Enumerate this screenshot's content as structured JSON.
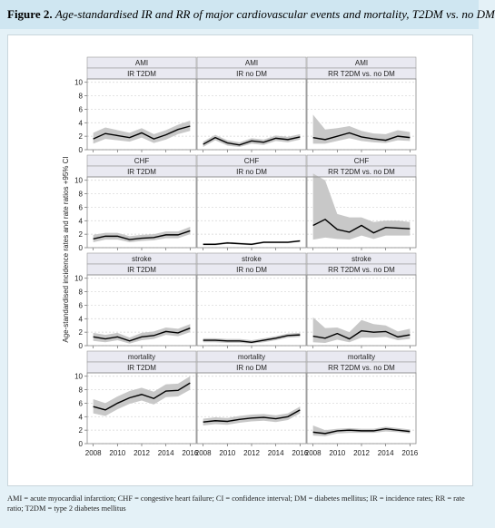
{
  "caption": {
    "label": "Figure 2.",
    "text": "Age-standardised IR and RR of major cardiovascular events and mortality, T2DM vs. no DM"
  },
  "ylabel": "Age-standardised incidence rates and rate ratios +95% CI",
  "footnote": "AMI = acute myocardial infarction; CHF = congestive heart failure; CI = confidence interval; DM = diabetes mellitus; IR = incidence rates; RR = rate ratio; T2DM = type 2 diabetes mellitus",
  "chart_data": [
    {
      "type": "line",
      "title": "AMI",
      "subtitle": "IR T2DM",
      "x": [
        2008,
        2009,
        2010,
        2011,
        2012,
        2013,
        2014,
        2015,
        2016
      ],
      "values": [
        1.6,
        2.4,
        2.1,
        1.8,
        2.5,
        1.6,
        2.2,
        3.0,
        3.5
      ],
      "lower": [
        0.9,
        1.6,
        1.4,
        1.2,
        1.8,
        1.0,
        1.5,
        2.3,
        2.8
      ],
      "upper": [
        2.5,
        3.3,
        2.9,
        2.5,
        3.2,
        2.3,
        2.9,
        3.7,
        4.3
      ],
      "color": "#000000",
      "band_color": "#c8c8c8",
      "xlim": [
        2007.5,
        2016.5
      ],
      "ylim": [
        0,
        10.5
      ],
      "xticks": [
        2008,
        2010,
        2012,
        2014,
        2016
      ],
      "yticks": [
        0,
        2,
        4,
        6,
        8,
        10
      ],
      "grid": true
    },
    {
      "type": "line",
      "title": "AMI",
      "subtitle": "IR no DM",
      "x": [
        2008,
        2009,
        2010,
        2011,
        2012,
        2013,
        2014,
        2015,
        2016
      ],
      "values": [
        0.8,
        1.8,
        1.0,
        0.7,
        1.3,
        1.1,
        1.7,
        1.5,
        1.9
      ],
      "lower": [
        0.4,
        1.4,
        0.6,
        0.4,
        0.9,
        0.7,
        1.3,
        1.1,
        1.5
      ],
      "upper": [
        1.2,
        2.2,
        1.4,
        1.1,
        1.7,
        1.5,
        2.1,
        1.9,
        2.3
      ],
      "color": "#000000",
      "band_color": "#c8c8c8",
      "xlim": [
        2007.5,
        2016.5
      ],
      "ylim": [
        0,
        10.5
      ],
      "xticks": [
        2008,
        2010,
        2012,
        2014,
        2016
      ],
      "yticks": [
        0,
        2,
        4,
        6,
        8,
        10
      ],
      "grid": true
    },
    {
      "type": "line",
      "title": "AMI",
      "subtitle": "RR T2DM vs. no DM",
      "x": [
        2008,
        2009,
        2010,
        2011,
        2012,
        2013,
        2014,
        2015,
        2016
      ],
      "values": [
        1.8,
        1.5,
        2.0,
        2.5,
        1.9,
        1.6,
        1.4,
        2.0,
        1.8
      ],
      "lower": [
        0.9,
        0.9,
        1.3,
        1.7,
        1.3,
        1.1,
        1.0,
        1.4,
        1.3
      ],
      "upper": [
        5.2,
        3.0,
        3.2,
        3.5,
        2.8,
        2.4,
        2.3,
        2.9,
        2.6
      ],
      "color": "#000000",
      "band_color": "#c8c8c8",
      "xlim": [
        2007.5,
        2016.5
      ],
      "ylim": [
        0,
        10.5
      ],
      "xticks": [
        2008,
        2010,
        2012,
        2014,
        2016
      ],
      "yticks": [
        0,
        2,
        4,
        6,
        8,
        10
      ],
      "grid": true
    },
    {
      "type": "line",
      "title": "CHF",
      "subtitle": "IR T2DM",
      "x": [
        2008,
        2009,
        2010,
        2011,
        2012,
        2013,
        2014,
        2015,
        2016
      ],
      "values": [
        1.3,
        1.7,
        1.7,
        1.2,
        1.4,
        1.5,
        1.9,
        1.9,
        2.5
      ],
      "lower": [
        0.8,
        1.2,
        1.2,
        0.8,
        1.0,
        1.1,
        1.4,
        1.4,
        2.0
      ],
      "upper": [
        1.9,
        2.2,
        2.2,
        1.7,
        1.9,
        2.0,
        2.4,
        2.4,
        3.1
      ],
      "color": "#000000",
      "band_color": "#c8c8c8",
      "xlim": [
        2007.5,
        2016.5
      ],
      "ylim": [
        0,
        10.5
      ],
      "xticks": [
        2008,
        2010,
        2012,
        2014,
        2016
      ],
      "yticks": [
        0,
        2,
        4,
        6,
        8,
        10
      ],
      "grid": true
    },
    {
      "type": "line",
      "title": "CHF",
      "subtitle": "IR no DM",
      "x": [
        2008,
        2009,
        2010,
        2011,
        2012,
        2013,
        2014,
        2015,
        2016
      ],
      "values": [
        0.5,
        0.5,
        0.7,
        0.6,
        0.5,
        0.8,
        0.8,
        0.8,
        1.0
      ],
      "lower": [
        0.35,
        0.35,
        0.55,
        0.45,
        0.35,
        0.65,
        0.65,
        0.65,
        0.85
      ],
      "upper": [
        0.65,
        0.65,
        0.85,
        0.75,
        0.65,
        0.95,
        0.95,
        0.95,
        1.15
      ],
      "color": "#000000",
      "band_color": "#c8c8c8",
      "xlim": [
        2007.5,
        2016.5
      ],
      "ylim": [
        0,
        10.5
      ],
      "xticks": [
        2008,
        2010,
        2012,
        2014,
        2016
      ],
      "yticks": [
        0,
        2,
        4,
        6,
        8,
        10
      ],
      "grid": true
    },
    {
      "type": "line",
      "title": "CHF",
      "subtitle": "RR T2DM vs. no DM",
      "x": [
        2008,
        2009,
        2010,
        2011,
        2012,
        2013,
        2014,
        2015,
        2016
      ],
      "values": [
        3.3,
        4.2,
        2.7,
        2.3,
        3.3,
        2.2,
        3.0,
        2.9,
        2.8
      ],
      "lower": [
        1.2,
        1.5,
        1.3,
        1.2,
        1.8,
        1.3,
        1.8,
        1.8,
        1.8
      ],
      "upper": [
        11,
        10,
        5,
        4.5,
        4.5,
        3.8,
        4,
        4,
        3.8
      ],
      "color": "#000000",
      "band_color": "#c8c8c8",
      "xlim": [
        2007.5,
        2016.5
      ],
      "ylim": [
        0,
        10.5
      ],
      "xticks": [
        2008,
        2010,
        2012,
        2014,
        2016
      ],
      "yticks": [
        0,
        2,
        4,
        6,
        8,
        10
      ],
      "grid": true
    },
    {
      "type": "line",
      "title": "stroke",
      "subtitle": "IR T2DM",
      "x": [
        2008,
        2009,
        2010,
        2011,
        2012,
        2013,
        2014,
        2015,
        2016
      ],
      "values": [
        1.3,
        1.0,
        1.3,
        0.7,
        1.3,
        1.5,
        2.1,
        1.9,
        2.6
      ],
      "lower": [
        0.7,
        0.5,
        0.8,
        0.3,
        0.8,
        1.0,
        1.6,
        1.4,
        2.0
      ],
      "upper": [
        1.9,
        1.6,
        1.9,
        1.2,
        1.9,
        2.1,
        2.7,
        2.5,
        3.2
      ],
      "color": "#000000",
      "band_color": "#c8c8c8",
      "xlim": [
        2007.5,
        2016.5
      ],
      "ylim": [
        0,
        10.5
      ],
      "xticks": [
        2008,
        2010,
        2012,
        2014,
        2016
      ],
      "yticks": [
        0,
        2,
        4,
        6,
        8,
        10
      ],
      "grid": true
    },
    {
      "type": "line",
      "title": "stroke",
      "subtitle": "IR no DM",
      "x": [
        2008,
        2009,
        2010,
        2011,
        2012,
        2013,
        2014,
        2015,
        2016
      ],
      "values": [
        0.8,
        0.8,
        0.7,
        0.7,
        0.5,
        0.8,
        1.1,
        1.5,
        1.6
      ],
      "lower": [
        0.5,
        0.5,
        0.4,
        0.4,
        0.3,
        0.5,
        0.8,
        1.2,
        1.3
      ],
      "upper": [
        1.1,
        1.1,
        1.0,
        1.0,
        0.8,
        1.1,
        1.4,
        1.8,
        1.9
      ],
      "color": "#000000",
      "band_color": "#c8c8c8",
      "xlim": [
        2007.5,
        2016.5
      ],
      "ylim": [
        0,
        10.5
      ],
      "xticks": [
        2008,
        2010,
        2012,
        2014,
        2016
      ],
      "yticks": [
        0,
        2,
        4,
        6,
        8,
        10
      ],
      "grid": true
    },
    {
      "type": "line",
      "title": "stroke",
      "subtitle": "RR T2DM vs. no DM",
      "x": [
        2008,
        2009,
        2010,
        2011,
        2012,
        2013,
        2014,
        2015,
        2016
      ],
      "values": [
        1.4,
        1.1,
        1.8,
        1.0,
        2.2,
        2.0,
        2.1,
        1.3,
        1.6
      ],
      "lower": [
        0.5,
        0.4,
        0.9,
        0.5,
        1.2,
        1.2,
        1.3,
        0.8,
        1.0
      ],
      "upper": [
        4.2,
        2.6,
        2.7,
        2.0,
        3.8,
        3.2,
        3.0,
        2.1,
        2.5
      ],
      "color": "#000000",
      "band_color": "#c8c8c8",
      "xlim": [
        2007.5,
        2016.5
      ],
      "ylim": [
        0,
        10.5
      ],
      "xticks": [
        2008,
        2010,
        2012,
        2014,
        2016
      ],
      "yticks": [
        0,
        2,
        4,
        6,
        8,
        10
      ],
      "grid": true
    },
    {
      "type": "line",
      "title": "mortality",
      "subtitle": "IR T2DM",
      "x": [
        2008,
        2009,
        2010,
        2011,
        2012,
        2013,
        2014,
        2015,
        2016
      ],
      "values": [
        5.5,
        5.0,
        6.0,
        6.8,
        7.3,
        6.7,
        7.8,
        7.9,
        9.0
      ],
      "lower": [
        4.5,
        4.1,
        5.1,
        5.9,
        6.4,
        5.8,
        6.9,
        7.0,
        8.0
      ],
      "upper": [
        6.6,
        6.0,
        7.0,
        7.8,
        8.3,
        7.7,
        8.8,
        8.9,
        10.0
      ],
      "color": "#000000",
      "band_color": "#c8c8c8",
      "xlim": [
        2007.5,
        2016.5
      ],
      "ylim": [
        0,
        10.5
      ],
      "xticks": [
        2008,
        2010,
        2012,
        2014,
        2016
      ],
      "yticks": [
        0,
        2,
        4,
        6,
        8,
        10
      ],
      "grid": true
    },
    {
      "type": "line",
      "title": "mortality",
      "subtitle": "IR no DM",
      "x": [
        2008,
        2009,
        2010,
        2011,
        2012,
        2013,
        2014,
        2015,
        2016
      ],
      "values": [
        3.2,
        3.4,
        3.3,
        3.6,
        3.8,
        3.9,
        3.7,
        4.0,
        5.0
      ],
      "lower": [
        2.7,
        2.9,
        2.8,
        3.1,
        3.3,
        3.4,
        3.2,
        3.5,
        4.5
      ],
      "upper": [
        3.7,
        3.9,
        3.8,
        4.1,
        4.3,
        4.4,
        4.2,
        4.5,
        5.5
      ],
      "color": "#000000",
      "band_color": "#c8c8c8",
      "xlim": [
        2007.5,
        2016.5
      ],
      "ylim": [
        0,
        10.5
      ],
      "xticks": [
        2008,
        2010,
        2012,
        2014,
        2016
      ],
      "yticks": [
        0,
        2,
        4,
        6,
        8,
        10
      ],
      "grid": true
    },
    {
      "type": "line",
      "title": "mortality",
      "subtitle": "RR T2DM vs. no DM",
      "x": [
        2008,
        2009,
        2010,
        2011,
        2012,
        2013,
        2014,
        2015,
        2016
      ],
      "values": [
        1.7,
        1.5,
        1.9,
        2.0,
        1.9,
        1.9,
        2.2,
        2.0,
        1.8
      ],
      "lower": [
        1.2,
        1.1,
        1.5,
        1.6,
        1.6,
        1.6,
        1.8,
        1.7,
        1.5
      ],
      "upper": [
        2.7,
        2.0,
        2.2,
        2.3,
        2.2,
        2.2,
        2.5,
        2.3,
        2.1
      ],
      "color": "#000000",
      "band_color": "#c8c8c8",
      "xlim": [
        2007.5,
        2016.5
      ],
      "ylim": [
        0,
        10.5
      ],
      "xticks": [
        2008,
        2010,
        2012,
        2014,
        2016
      ],
      "yticks": [
        0,
        2,
        4,
        6,
        8,
        10
      ],
      "grid": true
    }
  ]
}
